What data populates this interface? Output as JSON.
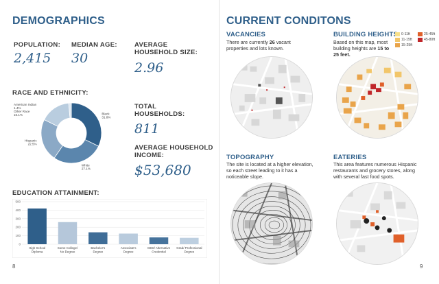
{
  "left_page": {
    "title": "DEMOGRAPHICS",
    "page_number": "8",
    "stats": {
      "population_label": "POPULATION:",
      "population_value": "2,415",
      "median_age_label": "MEDIAN AGE:",
      "median_age_value": "30",
      "avg_household_size_label_1": "AVERAGE",
      "avg_household_size_label_2": "HOUSEHOLD SIZE:",
      "avg_household_size_value": "2.96",
      "total_households_label_1": "TOTAL",
      "total_households_label_2": "HOUSEHOLDS:",
      "total_households_value": "811",
      "avg_income_label_1": "AVERAGE HOUSEHOLD",
      "avg_income_label_2": "INCOME:",
      "avg_income_value": "$53,680"
    },
    "race_heading": "RACE AND ETHNICITY:",
    "education_heading": "EDUCATION ATTAINMENT:"
  },
  "right_page": {
    "title": "CURRENT CONDITONS",
    "page_number": "9",
    "vacancies": {
      "title": "VACANCIES",
      "text_a": "There are currently ",
      "text_bold": "26",
      "text_b": " vacant",
      "text_line2": "properties and lots known."
    },
    "building_heights": {
      "title": "BUILDING HEIGHTS",
      "line1": "Based on this map, most",
      "line2_a": "building heights are ",
      "line2_bold": "15 to",
      "line3_bold": "25 feet.",
      "legend": [
        {
          "label": "0-11ft",
          "color": "#f7e08a"
        },
        {
          "label": "25-45ft",
          "color": "#e0602a"
        },
        {
          "label": "11-15ft",
          "color": "#f2c66a"
        },
        {
          "label": "45-80ft",
          "color": "#c0262a"
        },
        {
          "label": "15-25ft",
          "color": "#e9a44a"
        }
      ]
    },
    "topography": {
      "title": "TOPOGRAPHY",
      "line1": "The site is located at a higher elevation,",
      "line2": "so each street leading to it has a",
      "line3": "noticeable slope."
    },
    "eateries": {
      "title": "EATERIES",
      "line1": "This area features numerous Hispanic",
      "line2": "restaurants and grocery stores, along",
      "line3": "with several fast food spots."
    }
  },
  "chart_data": [
    {
      "type": "pie",
      "title": "RACE AND ETHNICITY",
      "donut": true,
      "slices": [
        {
          "label": "Black",
          "value": 31.8,
          "label_text": "Black 31.8%",
          "color": "#2f5f8a"
        },
        {
          "label": "White",
          "value": 27.1,
          "label_text": "White 27.1%",
          "color": "#5b86ad"
        },
        {
          "label": "Hispanic",
          "value": 22.5,
          "label_text": "Hispanic 22.5%",
          "color": "#8ba9c6"
        },
        {
          "label": "Other Race",
          "value": 16.1,
          "label_text": "Other Race 16.1%",
          "color": "#b9cddf"
        },
        {
          "label": "American Indian",
          "value": 1.4,
          "label_text": "American Indian 1.4%",
          "color": "#dde7f1"
        }
      ]
    },
    {
      "type": "bar",
      "title": "EDUCATION ATTAINMENT",
      "categories": [
        "High School Diploma",
        "Some College/ No Degree",
        "Bachelor's Degree",
        "Associate's Degree",
        "GED/ Alternative Credential",
        "Grad/ Professional Degree"
      ],
      "category_lines": [
        [
          "High School",
          "Diploma"
        ],
        [
          "Some College/",
          "No Degree"
        ],
        [
          "Bachelor's",
          "Degree"
        ],
        [
          "Associate's",
          "Degree"
        ],
        [
          "GED/ Alternative",
          "Credential"
        ],
        [
          "Grad/ Professional",
          "Degree"
        ]
      ],
      "values": [
        420,
        260,
        140,
        125,
        80,
        75
      ],
      "ylim": [
        0,
        500
      ],
      "yticks": [
        0,
        100,
        200,
        300,
        400,
        500
      ],
      "bar_colors": [
        "#2f5f8a",
        "#b5c7da",
        "#3f6d97",
        "#b9cbdd",
        "#46739c",
        "#bdcfe0"
      ]
    }
  ]
}
